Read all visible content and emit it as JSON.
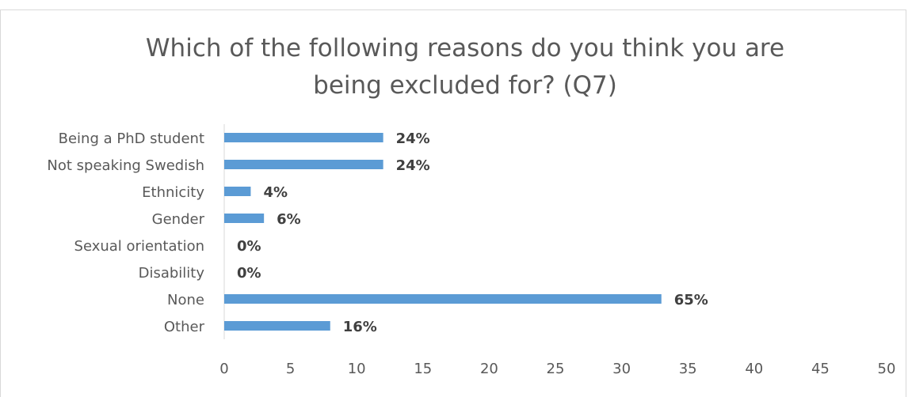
{
  "chart_data": {
    "type": "bar",
    "orientation": "horizontal",
    "title_lines": [
      "Which of the following reasons do you think you are",
      "being excluded for? (Q7)"
    ],
    "categories": [
      "Being a PhD student",
      "Not speaking Swedish",
      "Ethnicity",
      "Gender",
      "Sexual orientation",
      "Disability",
      "None",
      "Other"
    ],
    "values": [
      12,
      12,
      2,
      3,
      0,
      0,
      33,
      8
    ],
    "data_labels": [
      "24%",
      "24%",
      "4%",
      "6%",
      "0%",
      "0%",
      "65%",
      "16%"
    ],
    "xlim": [
      0,
      50
    ],
    "xticks": [
      0,
      5,
      10,
      15,
      20,
      25,
      30,
      35,
      40,
      45,
      50
    ],
    "grid": false,
    "legend": "none",
    "colors": {
      "bar": "#5b9bd5",
      "text": "#595959",
      "axis": "#d9d9d9"
    }
  }
}
